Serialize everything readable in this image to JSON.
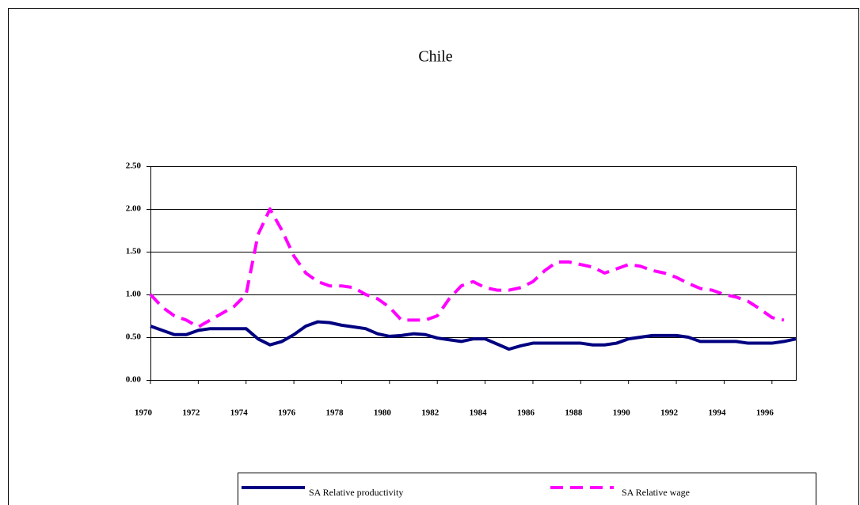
{
  "chart_data": {
    "type": "line",
    "title": "Chile",
    "x": [
      1970,
      1970.5,
      1971,
      1971.5,
      1972,
      1972.5,
      1973,
      1973.5,
      1974,
      1974.5,
      1975,
      1975.5,
      1976,
      1976.5,
      1977,
      1977.5,
      1978,
      1978.5,
      1979,
      1979.5,
      1980,
      1980.5,
      1981,
      1981.5,
      1982,
      1982.5,
      1983,
      1983.5,
      1984,
      1984.5,
      1985,
      1985.5,
      1986,
      1986.5,
      1987,
      1987.5,
      1988,
      1988.5,
      1989,
      1989.5,
      1990,
      1990.5,
      1991,
      1991.5,
      1992,
      1992.5,
      1993,
      1993.5,
      1994,
      1994.5,
      1995,
      1995.5,
      1996,
      1996.5,
      1997
    ],
    "series": [
      {
        "name": "SA Relative productivity",
        "color": "#000080",
        "dashed": false,
        "values": [
          0.63,
          0.58,
          0.53,
          0.53,
          0.58,
          0.6,
          0.6,
          0.6,
          0.6,
          0.48,
          0.41,
          0.45,
          0.53,
          0.63,
          0.68,
          0.67,
          0.64,
          0.62,
          0.6,
          0.54,
          0.51,
          0.52,
          0.54,
          0.53,
          0.49,
          0.47,
          0.45,
          0.48,
          0.48,
          0.42,
          0.36,
          0.4,
          0.43,
          0.43,
          0.43,
          0.43,
          0.43,
          0.41,
          0.41,
          0.43,
          0.48,
          0.5,
          0.52,
          0.52,
          0.52,
          0.5,
          0.45,
          0.45,
          0.45,
          0.45,
          0.43,
          0.43,
          0.43,
          0.45,
          0.48
        ]
      },
      {
        "name": "SA Relative wage",
        "color": "#ff00ff",
        "dashed": true,
        "values": [
          1.0,
          0.85,
          0.75,
          0.7,
          0.62,
          0.7,
          0.78,
          0.86,
          1.0,
          1.7,
          2.0,
          1.75,
          1.45,
          1.25,
          1.15,
          1.1,
          1.1,
          1.08,
          1.0,
          0.95,
          0.85,
          0.7,
          0.7,
          0.7,
          0.75,
          0.95,
          1.1,
          1.15,
          1.08,
          1.05,
          1.05,
          1.08,
          1.15,
          1.28,
          1.38,
          1.38,
          1.35,
          1.32,
          1.25,
          1.3,
          1.35,
          1.33,
          1.28,
          1.25,
          1.2,
          1.13,
          1.07,
          1.05,
          1.0,
          0.97,
          0.92,
          0.83,
          0.73,
          0.7,
          null
        ]
      }
    ],
    "xlim": [
      1970,
      1997
    ],
    "xticks": [
      1970,
      1972,
      1974,
      1976,
      1978,
      1980,
      1982,
      1984,
      1986,
      1988,
      1990,
      1992,
      1994,
      1996
    ],
    "ylim": [
      0,
      2.5
    ],
    "yticks": [
      {
        "value": 0,
        "label": "0.00"
      },
      {
        "value": 0.5,
        "label": "0.50"
      },
      {
        "value": 1,
        "label": "1.00"
      },
      {
        "value": 1.5,
        "label": "1.50"
      },
      {
        "value": 2,
        "label": "2.00"
      },
      {
        "value": 2.5,
        "label": "2.50"
      }
    ],
    "grid": true,
    "legend": "bottom"
  }
}
